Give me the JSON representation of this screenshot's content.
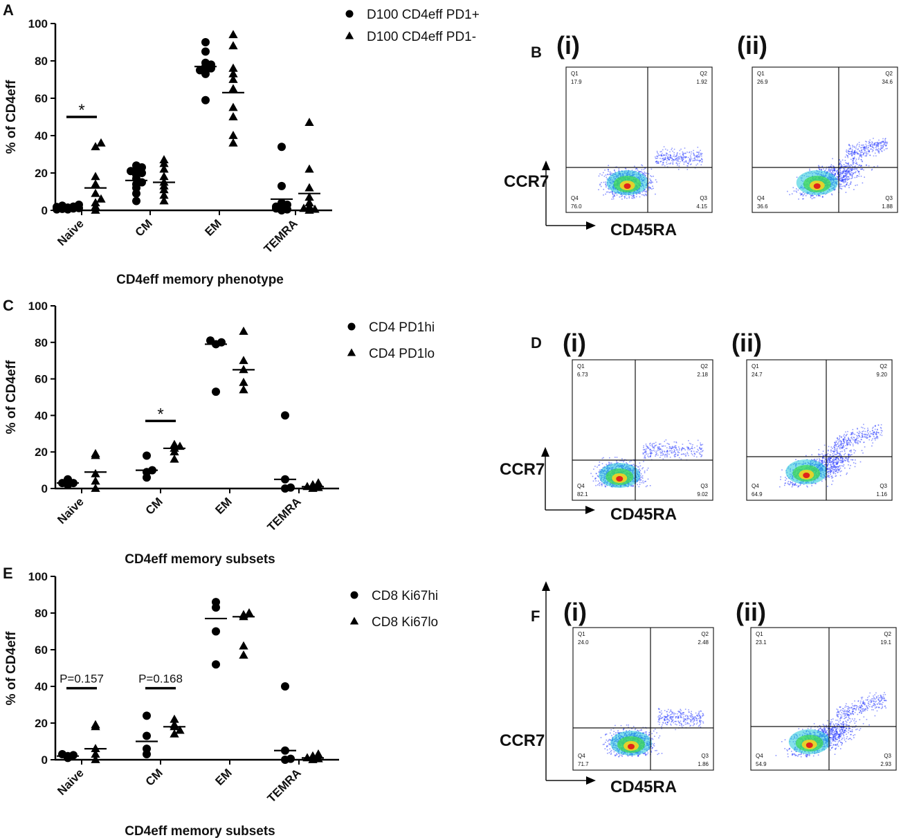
{
  "panel_letters": {
    "a": "A",
    "b": "B",
    "c": "C",
    "d": "D",
    "e": "E",
    "f": "F"
  },
  "chart_data": [
    {
      "type": "scatter",
      "panel": "A",
      "title": "",
      "xlabel": "CD4eff memory phenotype",
      "ylabel": "% of CD4eff",
      "ylim": [
        0,
        100
      ],
      "yticks": [
        0,
        20,
        40,
        60,
        80,
        100
      ],
      "categories": [
        "Naive",
        "CM",
        "EM",
        "TEMRA"
      ],
      "legend": [
        "D100 CD4eff PD1+",
        "D100 CD4eff PD1-"
      ],
      "series": [
        {
          "name": "D100 CD4eff PD1+",
          "marker": "circle",
          "points": [
            [
              0,
              0.5
            ],
            [
              0,
              1
            ],
            [
              0,
              1.5
            ],
            [
              0,
              2
            ],
            [
              0,
              2.5
            ],
            [
              0,
              3
            ],
            [
              0,
              0.8
            ],
            [
              0,
              1.2
            ],
            [
              0,
              0.5
            ],
            [
              0,
              1.8
            ],
            [
              1,
              5
            ],
            [
              1,
              9
            ],
            [
              1,
              12
            ],
            [
              1,
              14
            ],
            [
              1,
              17
            ],
            [
              1,
              19
            ],
            [
              1,
              20
            ],
            [
              1,
              21
            ],
            [
              1,
              22
            ],
            [
              1,
              23
            ],
            [
              1,
              24
            ],
            [
              1,
              15
            ],
            [
              2,
              59
            ],
            [
              2,
              73
            ],
            [
              2,
              75
            ],
            [
              2,
              76
            ],
            [
              2,
              77
            ],
            [
              2,
              78
            ],
            [
              2,
              75
            ],
            [
              2,
              79
            ],
            [
              2,
              85
            ],
            [
              2,
              90
            ],
            [
              3,
              0
            ],
            [
              3,
              0.5
            ],
            [
              3,
              1
            ],
            [
              3,
              2
            ],
            [
              3,
              3
            ],
            [
              3,
              4
            ],
            [
              3,
              2
            ],
            [
              3,
              13
            ],
            [
              3,
              34
            ]
          ],
          "means": [
            1,
            16,
            77,
            6
          ]
        },
        {
          "name": "D100 CD4eff PD1-",
          "marker": "triangle",
          "points": [
            [
              0,
              0
            ],
            [
              0,
              2
            ],
            [
              0,
              4
            ],
            [
              0,
              6
            ],
            [
              0,
              9
            ],
            [
              0,
              14
            ],
            [
              0,
              18
            ],
            [
              0,
              34
            ],
            [
              0,
              36
            ],
            [
              1,
              5
            ],
            [
              1,
              8
            ],
            [
              1,
              11
            ],
            [
              1,
              13
            ],
            [
              1,
              15
            ],
            [
              1,
              18
            ],
            [
              1,
              22
            ],
            [
              1,
              25
            ],
            [
              1,
              27
            ],
            [
              2,
              36
            ],
            [
              2,
              40
            ],
            [
              2,
              50
            ],
            [
              2,
              55
            ],
            [
              2,
              65
            ],
            [
              2,
              70
            ],
            [
              2,
              73
            ],
            [
              2,
              76
            ],
            [
              2,
              88
            ],
            [
              2,
              94
            ],
            [
              3,
              0
            ],
            [
              3,
              0.5
            ],
            [
              3,
              1
            ],
            [
              3,
              2
            ],
            [
              3,
              4
            ],
            [
              3,
              7
            ],
            [
              3,
              12
            ],
            [
              3,
              22
            ],
            [
              3,
              47
            ]
          ],
          "means": [
            12,
            15,
            63,
            9
          ]
        }
      ],
      "annotations": [
        {
          "category": 0,
          "y": 50,
          "text": "*"
        }
      ]
    },
    {
      "type": "scatter",
      "panel": "C",
      "title": "",
      "xlabel": "CD4eff memory subsets",
      "ylabel": "% of CD4eff",
      "ylim": [
        0,
        100
      ],
      "yticks": [
        0,
        20,
        40,
        60,
        80,
        100
      ],
      "categories": [
        "Naive",
        "CM",
        "EM",
        "TEMRA"
      ],
      "legend": [
        "CD4 PD1hi",
        "CD4 PD1lo"
      ],
      "series": [
        {
          "name": "CD4 PD1hi",
          "marker": "circle",
          "points": [
            [
              0,
              2
            ],
            [
              0,
              3
            ],
            [
              0,
              3
            ],
            [
              0,
              5
            ],
            [
              1,
              6
            ],
            [
              1,
              9
            ],
            [
              1,
              10
            ],
            [
              1,
              18
            ],
            [
              2,
              53
            ],
            [
              2,
              79
            ],
            [
              2,
              80
            ],
            [
              2,
              81
            ],
            [
              3,
              0
            ],
            [
              3,
              0.5
            ],
            [
              3,
              5
            ],
            [
              3,
              40
            ]
          ],
          "means": [
            3,
            10,
            79,
            5
          ]
        },
        {
          "name": "CD4 PD1lo",
          "marker": "triangle",
          "points": [
            [
              0,
              0
            ],
            [
              0,
              4
            ],
            [
              0,
              8
            ],
            [
              0,
              18
            ],
            [
              0,
              19
            ],
            [
              1,
              16
            ],
            [
              1,
              20
            ],
            [
              1,
              22
            ],
            [
              1,
              23
            ],
            [
              1,
              24
            ],
            [
              2,
              54
            ],
            [
              2,
              58
            ],
            [
              2,
              65
            ],
            [
              2,
              70
            ],
            [
              2,
              86
            ],
            [
              3,
              0
            ],
            [
              3,
              0.5
            ],
            [
              3,
              1
            ],
            [
              3,
              2
            ],
            [
              3,
              3
            ]
          ],
          "means": [
            9,
            22,
            65,
            1
          ]
        }
      ],
      "annotations": [
        {
          "category": 1,
          "y": 37,
          "text": "*"
        }
      ]
    },
    {
      "type": "scatter",
      "panel": "E",
      "title": "",
      "xlabel": "CD4eff memory subsets",
      "ylabel": "% of CD4eff",
      "ylim": [
        0,
        100
      ],
      "yticks": [
        0,
        20,
        40,
        60,
        80,
        100
      ],
      "categories": [
        "Naive",
        "CM",
        "EM",
        "TEMRA"
      ],
      "legend": [
        "CD8 Ki67hi",
        "CD8 Ki67lo"
      ],
      "series": [
        {
          "name": "CD8 Ki67hi",
          "marker": "circle",
          "points": [
            [
              0,
              1
            ],
            [
              0,
              2
            ],
            [
              0,
              2.5
            ],
            [
              0,
              3
            ],
            [
              1,
              3
            ],
            [
              1,
              6
            ],
            [
              1,
              13
            ],
            [
              1,
              24
            ],
            [
              2,
              52
            ],
            [
              2,
              70
            ],
            [
              2,
              83
            ],
            [
              2,
              86
            ],
            [
              3,
              0
            ],
            [
              3,
              0.5
            ],
            [
              3,
              5
            ],
            [
              3,
              40
            ]
          ],
          "means": [
            2,
            10,
            77,
            5
          ]
        },
        {
          "name": "CD8 Ki67lo",
          "marker": "triangle",
          "points": [
            [
              0,
              0
            ],
            [
              0,
              3
            ],
            [
              0,
              6
            ],
            [
              0,
              18
            ],
            [
              0,
              19
            ],
            [
              1,
              14
            ],
            [
              1,
              16
            ],
            [
              1,
              18
            ],
            [
              1,
              19
            ],
            [
              1,
              22
            ],
            [
              2,
              57
            ],
            [
              2,
              62
            ],
            [
              2,
              78
            ],
            [
              2,
              79
            ],
            [
              2,
              80
            ],
            [
              3,
              0
            ],
            [
              3,
              0.5
            ],
            [
              3,
              1
            ],
            [
              3,
              2
            ],
            [
              3,
              3
            ]
          ],
          "means": [
            6,
            18,
            78,
            1
          ]
        }
      ],
      "annotations": [
        {
          "category": 0,
          "y": 39,
          "text": "P=0.157"
        },
        {
          "category": 1,
          "y": 39,
          "text": "P=0.168"
        }
      ]
    }
  ],
  "flow_panels": [
    {
      "panel": "B",
      "y_axis_label": "CCR7",
      "x_axis_label": "CD45RA",
      "plots": [
        {
          "label": "(i)",
          "q1_name": "Q1",
          "q1": "17.9",
          "q2_name": "Q2",
          "q2": "1.92",
          "q4_name": "Q4",
          "q4": "76.0",
          "q3_name": "Q3",
          "q3": "4.15"
        },
        {
          "label": "(ii)",
          "q1_name": "Q1",
          "q1": "26.9",
          "q2_name": "Q2",
          "q2": "34.6",
          "q4_name": "Q4",
          "q4": "36.6",
          "q3_name": "Q3",
          "q3": "1.88"
        }
      ]
    },
    {
      "panel": "D",
      "y_axis_label": "CCR7",
      "x_axis_label": "CD45RA",
      "plots": [
        {
          "label": "(i)",
          "q1_name": "Q1",
          "q1": "6.73",
          "q2_name": "Q2",
          "q2": "2.18",
          "q4_name": "Q4",
          "q4": "82.1",
          "q3_name": "Q3",
          "q3": "9.02"
        },
        {
          "label": "(ii)",
          "q1_name": "Q1",
          "q1": "24.7",
          "q2_name": "Q2",
          "q2": "9.20",
          "q4_name": "Q4",
          "q4": "64.9",
          "q3_name": "Q3",
          "q3": "1.16"
        }
      ]
    },
    {
      "panel": "F",
      "y_axis_label": "CCR7",
      "x_axis_label": "CD45RA",
      "plots": [
        {
          "label": "(i)",
          "q1_name": "Q1",
          "q1": "24.0",
          "q2_name": "Q2",
          "q2": "2.48",
          "q4_name": "Q4",
          "q4": "71.7",
          "q3_name": "Q3",
          "q3": "1.86"
        },
        {
          "label": "(ii)",
          "q1_name": "Q1",
          "q1": "23.1",
          "q2_name": "Q2",
          "q2": "19.1",
          "q4_name": "Q4",
          "q4": "54.9",
          "q3_name": "Q3",
          "q3": "2.93"
        }
      ]
    }
  ]
}
